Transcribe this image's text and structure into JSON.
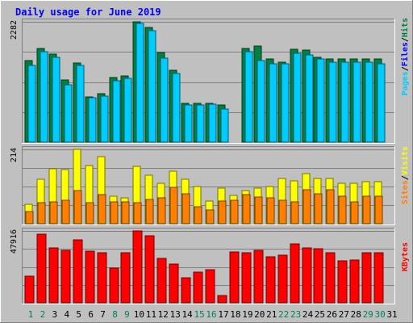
{
  "chart_data": [
    {
      "type": "bar",
      "title": "Daily usage for June 2019",
      "categories": [
        "1",
        "2",
        "3",
        "4",
        "5",
        "6",
        "7",
        "8",
        "9",
        "10",
        "11",
        "12",
        "13",
        "14",
        "15",
        "16",
        "17",
        "18",
        "19",
        "20",
        "21",
        "22",
        "23",
        "24",
        "25",
        "26",
        "27",
        "28",
        "29",
        "30",
        "31"
      ],
      "weekend_days": [
        "1",
        "2",
        "8",
        "9",
        "15",
        "16",
        "22",
        "23",
        "29",
        "30"
      ],
      "ymax_label": "2282",
      "ylim": [
        0,
        2282
      ],
      "series": [
        {
          "name": "Hits",
          "color": "#008040",
          "values": [
            1540,
            1770,
            1670,
            1180,
            1500,
            860,
            920,
            1220,
            1260,
            2280,
            2180,
            1700,
            1370,
            730,
            730,
            740,
            700,
            0,
            1780,
            1830,
            1570,
            1520,
            1760,
            1740,
            1610,
            1580,
            1570,
            1580,
            1570,
            1570,
            0
          ]
        },
        {
          "name": "Files",
          "color": "#0000ff",
          "values": [
            1450,
            1720,
            1610,
            1090,
            1450,
            840,
            870,
            1170,
            1210,
            2250,
            2110,
            1600,
            1300,
            700,
            710,
            720,
            630,
            0,
            1720,
            1540,
            1480,
            1480,
            1690,
            1660,
            1580,
            1520,
            1510,
            1510,
            1520,
            1480,
            0
          ]
        },
        {
          "name": "Pages",
          "color": "#00ccff",
          "values": [
            1450,
            1720,
            1610,
            1090,
            1450,
            840,
            870,
            1170,
            1210,
            2250,
            2110,
            1600,
            1300,
            700,
            710,
            720,
            630,
            0,
            1720,
            1540,
            1480,
            1480,
            1690,
            1660,
            1580,
            1520,
            1510,
            1510,
            1520,
            1480,
            0
          ]
        }
      ],
      "right_label": [
        "Pages",
        "/",
        "Files",
        "/",
        "Hits"
      ]
    },
    {
      "type": "bar",
      "ymax_label": "214",
      "ylim": [
        0,
        214
      ],
      "series": [
        {
          "name": "Visits",
          "color": "#ffff00",
          "values": [
            55,
            127,
            159,
            157,
            214,
            168,
            192,
            79,
            74,
            164,
            140,
            117,
            152,
            127,
            107,
            65,
            103,
            81,
            96,
            102,
            107,
            131,
            124,
            145,
            131,
            131,
            117,
            117,
            121,
            121,
            0
          ]
        },
        {
          "name": "Sites",
          "color": "#ff8000",
          "values": [
            36,
            61,
            63,
            68,
            96,
            60,
            84,
            63,
            63,
            60,
            70,
            75,
            105,
            86,
            50,
            40,
            64,
            67,
            84,
            76,
            74,
            67,
            63,
            97,
            85,
            98,
            78,
            63,
            78,
            80,
            0
          ]
        }
      ],
      "right_label": [
        "Sites",
        "/",
        "Visits"
      ]
    },
    {
      "type": "bar",
      "ymax_label": "47916",
      "ylim": [
        0,
        47916
      ],
      "series": [
        {
          "name": "KBytes",
          "color": "#ff0000",
          "values": [
            17500,
            45500,
            36600,
            35100,
            41900,
            34600,
            33200,
            23100,
            33400,
            48000,
            44500,
            29500,
            26000,
            16700,
            20400,
            22300,
            5100,
            33700,
            33500,
            35200,
            30500,
            31600,
            39300,
            36800,
            36300,
            33500,
            28000,
            28300,
            33300,
            33300,
            0
          ]
        }
      ],
      "right_label": [
        "KBytes"
      ]
    }
  ]
}
